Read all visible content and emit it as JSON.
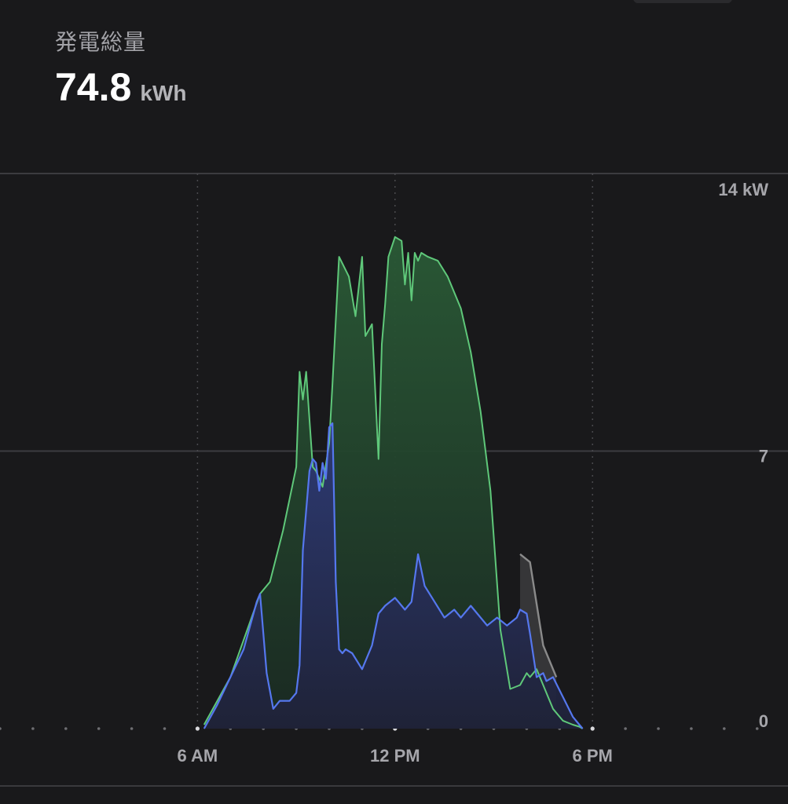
{
  "summary": {
    "label": "発電総量",
    "value": "74.8",
    "unit": "kWh"
  },
  "chart_data": {
    "type": "area",
    "x_unit": "hour",
    "xlim": [
      0,
      24
    ],
    "ylim": [
      0,
      14
    ],
    "grid": true,
    "y_ticks": [
      {
        "value": 14,
        "label": "14 kW"
      },
      {
        "value": 7,
        "label": "7"
      },
      {
        "value": 0,
        "label": "0"
      }
    ],
    "x_ticks": [
      {
        "value": 6,
        "label": "6 AM"
      },
      {
        "value": 12,
        "label": "12 PM"
      },
      {
        "value": 18,
        "label": "6 PM"
      }
    ],
    "colors": {
      "solar": "#5fc87a",
      "home": "#5577ee",
      "other": "#8a8a8a"
    },
    "series": [
      {
        "key": "solar",
        "x": [
          6.2,
          7.0,
          7.9,
          8.2,
          8.6,
          9.0,
          9.1,
          9.2,
          9.3,
          9.5,
          9.6,
          9.8,
          10.0,
          10.1,
          10.3,
          10.6,
          10.8,
          11.0,
          11.1,
          11.3,
          11.5,
          11.6,
          11.7,
          11.8,
          12.0,
          12.2,
          12.3,
          12.4,
          12.5,
          12.6,
          12.7,
          12.8,
          13.0,
          13.3,
          13.6,
          14.0,
          14.3,
          14.6,
          14.9,
          15.2,
          15.5,
          15.8,
          16.0,
          16.1,
          16.3,
          16.6,
          16.8,
          17.1,
          17.4,
          17.6,
          17.7
        ],
        "y": [
          0.1,
          1.3,
          3.4,
          3.7,
          5.0,
          6.6,
          9.0,
          8.3,
          9.0,
          6.6,
          6.5,
          6.1,
          7.2,
          8.7,
          11.9,
          11.4,
          10.4,
          11.9,
          9.9,
          10.2,
          6.8,
          9.7,
          10.7,
          11.9,
          12.4,
          12.3,
          11.2,
          12.0,
          10.8,
          12.0,
          11.8,
          12.0,
          11.9,
          11.8,
          11.4,
          10.6,
          9.5,
          8.0,
          6.0,
          2.5,
          1.0,
          1.1,
          1.4,
          1.3,
          1.5,
          0.9,
          0.5,
          0.2,
          0.1,
          0.05,
          0.0
        ]
      },
      {
        "key": "home",
        "x": [
          6.2,
          6.6,
          7.0,
          7.4,
          7.8,
          7.9,
          8.1,
          8.3,
          8.5,
          8.8,
          9.0,
          9.1,
          9.2,
          9.4,
          9.5,
          9.6,
          9.7,
          9.8,
          9.9,
          10.0,
          10.1,
          10.2,
          10.3,
          10.4,
          10.5,
          10.7,
          11.0,
          11.3,
          11.5,
          11.7,
          12.0,
          12.3,
          12.5,
          12.7,
          12.9,
          13.2,
          13.5,
          13.8,
          14.0,
          14.3,
          14.5,
          14.8,
          15.1,
          15.4,
          15.7,
          15.8,
          16.0,
          16.1,
          16.3,
          16.5,
          16.6,
          16.8,
          17.1,
          17.4,
          17.6,
          17.7
        ],
        "y": [
          0.0,
          0.6,
          1.3,
          2.0,
          3.2,
          3.4,
          1.4,
          0.5,
          0.7,
          0.7,
          0.9,
          1.6,
          4.5,
          6.5,
          6.8,
          6.7,
          6.0,
          6.7,
          6.3,
          7.6,
          7.7,
          3.7,
          2.0,
          1.9,
          2.0,
          1.9,
          1.5,
          2.1,
          2.9,
          3.1,
          3.3,
          3.0,
          3.2,
          4.4,
          3.6,
          3.2,
          2.8,
          3.0,
          2.8,
          3.1,
          2.9,
          2.6,
          2.8,
          2.6,
          2.8,
          3.0,
          2.9,
          2.4,
          1.3,
          1.4,
          1.2,
          1.3,
          0.8,
          0.3,
          0.1,
          0.0
        ]
      },
      {
        "key": "other",
        "x": [
          15.8,
          16.1,
          16.5,
          16.9
        ],
        "y": [
          4.4,
          4.2,
          2.1,
          1.3
        ]
      }
    ]
  }
}
